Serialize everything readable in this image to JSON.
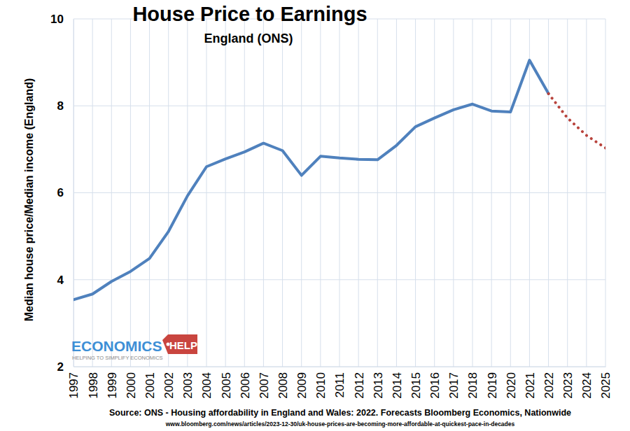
{
  "chart_data": {
    "type": "line",
    "title": "House Price to Earnings",
    "subtitle": "England (ONS)",
    "ylabel": "Median house price/Median income (England)",
    "annotations": [
      "Source: ONS - Housing affordability in England and Wales: 2022. Forecasts Bloomberg Economics, Nationwide",
      "www.bloomberg.com/news/articles/2023-12-30/uk-house-prices-are-becoming-more-affordable-at-quickest-pace-in-decades"
    ],
    "logo": {
      "text": "ECONOMICS",
      "tag": "HELP",
      "tagline": "HELPING TO SIMPLIFY ECONOMICS"
    },
    "categories": [
      "1997",
      "1998",
      "1999",
      "2000",
      "2001",
      "2002",
      "2003",
      "2004",
      "2005",
      "2006",
      "2007",
      "2008",
      "2009",
      "2010",
      "2011",
      "2012",
      "2013",
      "2014",
      "2015",
      "2016",
      "2017",
      "2018",
      "2019",
      "2020",
      "2021",
      "2022",
      "2023",
      "2024",
      "2025"
    ],
    "series": [
      {
        "color": "#4f81bd",
        "line_style": "solid",
        "values": [
          3.54,
          3.67,
          3.96,
          4.19,
          4.49,
          5.11,
          5.93,
          6.6,
          6.78,
          6.94,
          7.14,
          6.97,
          6.4,
          6.84,
          6.8,
          6.77,
          6.76,
          7.09,
          7.52,
          7.72,
          7.91,
          8.04,
          7.88,
          7.86,
          9.05,
          8.28,
          null,
          null,
          null
        ]
      },
      {
        "color": "#b8433c",
        "line_style": "dotted",
        "values": [
          null,
          null,
          null,
          null,
          null,
          null,
          null,
          null,
          null,
          null,
          null,
          null,
          null,
          null,
          null,
          null,
          null,
          null,
          null,
          null,
          null,
          null,
          null,
          null,
          null,
          8.28,
          7.72,
          7.32,
          7.03
        ]
      }
    ],
    "ylim": [
      2,
      10
    ],
    "yticks": [
      2,
      4,
      6,
      8,
      10
    ],
    "grid": true
  }
}
